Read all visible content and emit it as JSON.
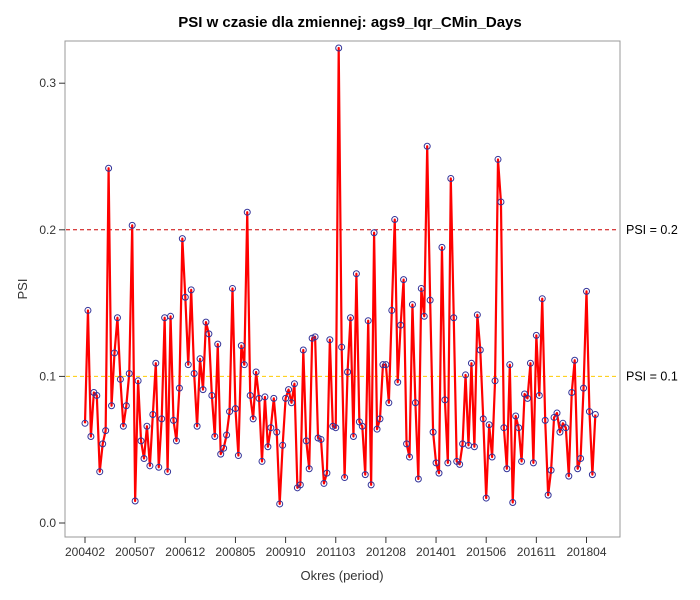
{
  "chart_data": {
    "type": "line",
    "title": "PSI w czasie dla zmiennej: ags9_Iqr_CMin_Days",
    "xlabel": "Okres (period)",
    "ylabel": "PSI",
    "ylim": [
      -0.0085,
      0.325
    ],
    "yticks": [
      "0.0",
      "0.1",
      "0.2",
      "0.3"
    ],
    "ytick_values": [
      0.0,
      0.1,
      0.2,
      0.3
    ],
    "xtick_labels": [
      "200402",
      "200507",
      "200612",
      "200805",
      "200910",
      "201103",
      "201208",
      "201401",
      "201506",
      "201611",
      "201804"
    ],
    "period_start": "200402",
    "series": [
      {
        "color": "#ff0000",
        "marker_color": "#333399",
        "values": [
          0.068,
          0.145,
          0.059,
          0.089,
          0.087,
          0.035,
          0.054,
          0.063,
          0.242,
          0.08,
          0.116,
          0.14,
          0.098,
          0.066,
          0.08,
          0.102,
          0.203,
          0.015,
          0.097,
          0.056,
          0.044,
          0.066,
          0.039,
          0.074,
          0.109,
          0.038,
          0.071,
          0.14,
          0.035,
          0.141,
          0.07,
          0.056,
          0.092,
          0.194,
          0.154,
          0.108,
          0.159,
          0.102,
          0.066,
          0.112,
          0.091,
          0.137,
          0.129,
          0.087,
          0.059,
          0.122,
          0.047,
          0.051,
          0.06,
          0.076,
          0.16,
          0.078,
          0.046,
          0.121,
          0.108,
          0.212,
          0.087,
          0.071,
          0.103,
          0.085,
          0.042,
          0.086,
          0.052,
          0.065,
          0.085,
          0.062,
          0.013,
          0.053,
          0.085,
          0.091,
          0.082,
          0.095,
          0.024,
          0.026,
          0.118,
          0.056,
          0.037,
          0.126,
          0.127,
          0.058,
          0.057,
          0.027,
          0.034,
          0.125,
          0.066,
          0.065,
          0.324,
          0.12,
          0.031,
          0.103,
          0.14,
          0.059,
          0.17,
          0.069,
          0.066,
          0.033,
          0.138,
          0.026,
          0.198,
          0.064,
          0.071,
          0.108,
          0.108,
          0.082,
          0.145,
          0.207,
          0.096,
          0.135,
          0.166,
          0.054,
          0.045,
          0.149,
          0.082,
          0.03,
          0.16,
          0.141,
          0.257,
          0.152,
          0.062,
          0.041,
          0.034,
          0.188,
          0.084,
          0.041,
          0.235,
          0.14,
          0.042,
          0.04,
          0.054,
          0.101,
          0.053,
          0.109,
          0.052,
          0.142,
          0.118,
          0.071,
          0.017,
          0.067,
          0.045,
          0.097,
          0.248,
          0.219,
          0.065,
          0.037,
          0.108,
          0.014,
          0.073,
          0.065,
          0.042,
          0.088,
          0.085,
          0.109,
          0.041,
          0.128,
          0.087,
          0.153,
          0.07,
          0.019,
          0.036,
          0.072,
          0.075,
          0.062,
          0.068,
          0.065,
          0.032,
          0.089,
          0.111,
          0.037,
          0.044,
          0.092,
          0.158,
          0.076,
          0.033,
          0.074
        ]
      }
    ],
    "reference_lines": [
      {
        "value": 0.2,
        "label": "PSI = 0.2",
        "color": "#cc0000",
        "style": "dashed"
      },
      {
        "value": 0.1,
        "label": "PSI = 0.1",
        "color": "#ffcc00",
        "style": "dashed"
      }
    ],
    "grid": false,
    "legend": "none"
  }
}
